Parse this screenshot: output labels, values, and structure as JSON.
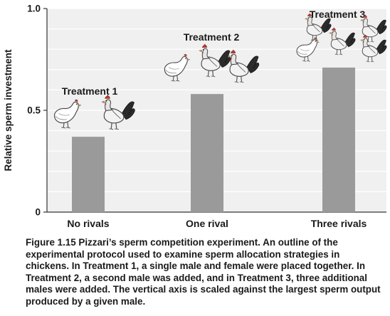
{
  "colors": {
    "bar": "#9a9a9a",
    "chart_background": "#f0f0f0",
    "gridline": "#ffffff",
    "axis": "#333333",
    "text": "#1a1a1a"
  },
  "chart_data": {
    "type": "bar",
    "categories": [
      "No rivals",
      "One rival",
      "Three rivals"
    ],
    "values": [
      0.37,
      0.58,
      0.71
    ],
    "title": "",
    "xlabel": "",
    "ylabel": "Relative sperm investment",
    "ylim": [
      0,
      1.0
    ],
    "yticks": [
      0,
      0.5,
      1.0
    ],
    "ytick_labels": [
      "0",
      "0.5",
      "1.0"
    ],
    "grid": true,
    "annotations": [
      {
        "label": "Treatment 1",
        "category": "No rivals",
        "hens": 1,
        "roosters": 1
      },
      {
        "label": "Treatment 2",
        "category": "One rival",
        "hens": 1,
        "roosters": 2
      },
      {
        "label": "Treatment 3",
        "category": "Three rivals",
        "hens": 1,
        "roosters": 4
      }
    ]
  },
  "caption": {
    "lead": "Figure 1.15 Pizzari’s sperm competition experiment.",
    "body": " An outline of the experimental protocol used to examine sperm allocation strategies in chickens. In Treatment 1, a single male and female were placed together. In Treatment 2, a second male was added, and in Treatment 3, three additional males were added. The vertical axis is scaled against the largest sperm output produced by a given male."
  }
}
